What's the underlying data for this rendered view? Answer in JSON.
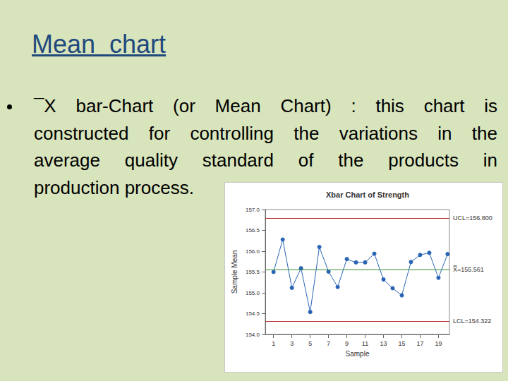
{
  "slide": {
    "title": "Mean  chart",
    "bullet_lines": [
      "¯X bar-Chart (or Mean Chart) : this chart is",
      "constructed for controlling the variations in the",
      "average quality standard of the products in",
      "production process."
    ]
  },
  "chart_data": {
    "type": "line",
    "title": "Xbar Chart of Strength",
    "x_label": "Sample",
    "y_label": "Sample Mean",
    "x": [
      1,
      2,
      3,
      4,
      5,
      6,
      7,
      8,
      9,
      10,
      11,
      12,
      13,
      14,
      15,
      16,
      17,
      18,
      19,
      20
    ],
    "values": [
      155.5,
      156.28,
      155.12,
      155.59,
      154.54,
      156.1,
      155.51,
      155.14,
      155.81,
      155.73,
      155.73,
      155.94,
      155.32,
      155.11,
      154.94,
      155.74,
      155.91,
      155.96,
      155.36,
      155.93
    ],
    "color": "#2a64b4",
    "marker": "circle",
    "line_style": "solid",
    "xlim": [
      0.1,
      20.2
    ],
    "xticks": [
      1,
      3,
      5,
      7,
      9,
      11,
      13,
      15,
      17,
      19
    ],
    "ylim": [
      154.0,
      157.0
    ],
    "yticks": [
      {
        "value": 154.0,
        "label": "154.0"
      },
      154.5,
      {
        "value": 155.0,
        "label": "155.0"
      },
      155.5,
      {
        "value": 156.0,
        "label": "156.0"
      },
      156.5,
      {
        "value": 157.0,
        "label": "157.0"
      }
    ],
    "reference_lines": [
      {
        "value": 156.8,
        "label": "UCL=156.800",
        "color": "#b22222"
      },
      {
        "value": 155.561,
        "label": "X̿=155.561",
        "color": "#2e8b2e"
      },
      {
        "value": 154.322,
        "label": "LCL=154.322",
        "color": "#b22222"
      }
    ],
    "grid": false
  }
}
